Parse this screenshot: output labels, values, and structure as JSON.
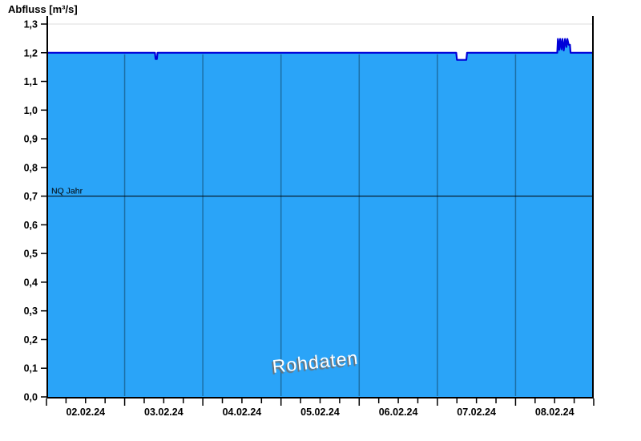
{
  "title": "Abfluss [m³/s]",
  "watermark": {
    "text": "Rohdaten"
  },
  "colors": {
    "fill": "#2AA4F8",
    "line": "#0000D8",
    "gridline": "#1C6FA6",
    "axis": "#000000",
    "top_border": "#E8E8E8",
    "reference_line": "#000000",
    "tick_label": "#000000",
    "watermark_text": "#FFFFFF",
    "watermark_shadow": "#707070"
  },
  "chart_data": {
    "type": "area",
    "title": "Abfluss [m³/s]",
    "ylabel": "Abfluss [m³/s]",
    "xlabel": "",
    "ylim": [
      0.0,
      1.3
    ],
    "ytick_step": 0.1,
    "ytick_labels": [
      "0,0",
      "0,1",
      "0,2",
      "0,3",
      "0,4",
      "0,5",
      "0,6",
      "0,7",
      "0,8",
      "0,9",
      "1,0",
      "1,1",
      "1,2",
      "1,3"
    ],
    "x_days": [
      "02.02.24",
      "03.02.24",
      "04.02.24",
      "05.02.24",
      "06.02.24",
      "07.02.24",
      "08.02.24"
    ],
    "x_range_hours": [
      0,
      168
    ],
    "minor_tick_hours": 6,
    "major_tick_hours": 24,
    "grid": "vertical-day-boundaries",
    "legend": "none",
    "baseline_value": 1.2,
    "reference_line": {
      "label": "NQ Jahr",
      "value": 0.7
    },
    "series": [
      {
        "name": "Abfluss Rohdaten",
        "unit": "m³/s",
        "points_hours_value": [
          [
            0,
            1.2
          ],
          [
            33.3,
            1.2
          ],
          [
            33.5,
            1.178
          ],
          [
            33.9,
            1.178
          ],
          [
            34.1,
            1.2
          ],
          [
            125.8,
            1.2
          ],
          [
            126.0,
            1.175
          ],
          [
            128.9,
            1.175
          ],
          [
            129.1,
            1.2
          ],
          [
            156.8,
            1.2
          ],
          [
            157.0,
            1.248
          ],
          [
            157.4,
            1.21
          ],
          [
            157.7,
            1.248
          ],
          [
            158.1,
            1.212
          ],
          [
            158.4,
            1.248
          ],
          [
            158.8,
            1.208
          ],
          [
            159.2,
            1.248
          ],
          [
            159.6,
            1.22
          ],
          [
            159.9,
            1.248
          ],
          [
            160.3,
            1.228
          ],
          [
            160.7,
            1.228
          ],
          [
            160.9,
            1.2
          ],
          [
            168,
            1.2
          ]
        ]
      }
    ]
  }
}
